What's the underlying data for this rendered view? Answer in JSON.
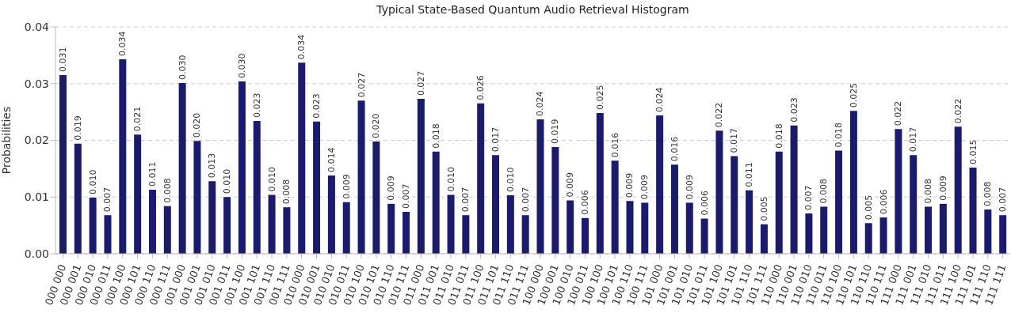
{
  "chart_data": {
    "type": "bar",
    "title": "Typical State-Based Quantum Audio Retrieval Histogram",
    "ylabel": "Probabilities",
    "categories": [
      "000 000",
      "000 001",
      "000 010",
      "000 011",
      "000 100",
      "000 101",
      "000 110",
      "000 111",
      "001 000",
      "001 001",
      "001 010",
      "001 011",
      "001 100",
      "001 101",
      "001 110",
      "001 111",
      "010 000",
      "010 001",
      "010 010",
      "010 011",
      "010 100",
      "010 101",
      "010 110",
      "010 111",
      "011 000",
      "011 001",
      "011 010",
      "011 011",
      "011 100",
      "011 101",
      "011 110",
      "011 111",
      "100 000",
      "100 001",
      "100 010",
      "100 011",
      "100 100",
      "100 101",
      "100 110",
      "100 111",
      "101 000",
      "101 001",
      "101 010",
      "101 011",
      "101 100",
      "101 101",
      "101 110",
      "101 111",
      "110 000",
      "110 001",
      "110 010",
      "110 011",
      "110 100",
      "110 101",
      "110 110",
      "110 111",
      "111 000",
      "111 001",
      "111 010",
      "111 011",
      "111 100",
      "111 101",
      "111 110",
      "111 111"
    ],
    "values": [
      0.0315,
      0.0194,
      0.0099,
      0.0068,
      0.0343,
      0.021,
      0.0113,
      0.0084,
      0.0301,
      0.0199,
      0.0128,
      0.01,
      0.0304,
      0.0234,
      0.0104,
      0.0082,
      0.0337,
      0.0233,
      0.0138,
      0.0091,
      0.027,
      0.0198,
      0.0088,
      0.0074,
      0.0273,
      0.018,
      0.0104,
      0.0068,
      0.0265,
      0.0174,
      0.0103,
      0.0068,
      0.0237,
      0.0188,
      0.0094,
      0.0063,
      0.0248,
      0.0164,
      0.0093,
      0.009,
      0.0244,
      0.0157,
      0.009,
      0.0062,
      0.0217,
      0.0172,
      0.0112,
      0.0052,
      0.018,
      0.0226,
      0.0071,
      0.0083,
      0.0182,
      0.0252,
      0.0054,
      0.0064,
      0.022,
      0.0174,
      0.0083,
      0.0088,
      0.0224,
      0.0152,
      0.0078,
      0.0068
    ],
    "value_labels": [
      "0.031",
      "0.019",
      "0.010",
      "0.007",
      "0.034",
      "0.021",
      "0.011",
      "0.008",
      "0.030",
      "0.020",
      "0.013",
      "0.010",
      "0.030",
      "0.023",
      "0.010",
      "0.008",
      "0.034",
      "0.023",
      "0.014",
      "0.009",
      "0.027",
      "0.020",
      "0.009",
      "0.007",
      "0.027",
      "0.018",
      "0.010",
      "0.007",
      "0.026",
      "0.017",
      "0.010",
      "0.007",
      "0.024",
      "0.019",
      "0.009",
      "0.006",
      "0.025",
      "0.016",
      "0.009",
      "0.009",
      "0.024",
      "0.016",
      "0.009",
      "0.006",
      "0.022",
      "0.017",
      "0.011",
      "0.005",
      "0.018",
      "0.023",
      "0.007",
      "0.008",
      "0.018",
      "0.025",
      "0.005",
      "0.006",
      "0.022",
      "0.017",
      "0.008",
      "0.009",
      "0.022",
      "0.015",
      "0.008",
      "0.007"
    ],
    "color": "#1b1b6d",
    "ylim": [
      0,
      0.04
    ],
    "yticks": [
      {
        "value": 0,
        "label": "0.00"
      },
      {
        "value": 0.01,
        "label": "0.01"
      },
      {
        "value": 0.02,
        "label": "0.02"
      },
      {
        "value": 0.03,
        "label": "0.03"
      },
      {
        "value": 0.04,
        "label": "0.04"
      }
    ],
    "grid": "y"
  }
}
